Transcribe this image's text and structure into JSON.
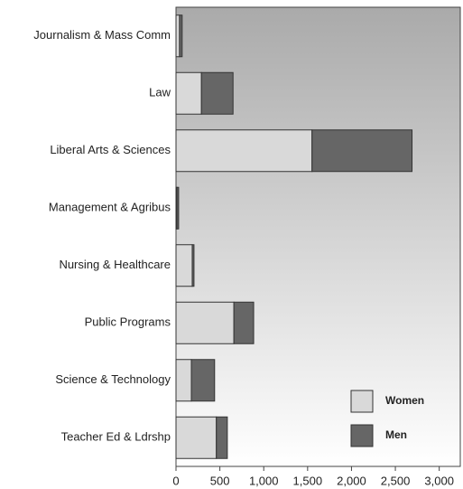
{
  "chart_data": {
    "type": "stacked_bar_horizontal",
    "categories": [
      "Journalism & Mass Comm",
      "Law",
      "Liberal Arts & Sciences",
      "Management & Agribus",
      "Nursing & Healthcare",
      "Public Programs",
      "Science & Technology",
      "Teacher Ed & Ldrshp"
    ],
    "series": [
      {
        "name": "Women",
        "color": "#d9d9d9",
        "values": [
          40,
          290,
          1550,
          10,
          185,
          660,
          175,
          460
        ]
      },
      {
        "name": "Men",
        "color": "#666666",
        "values": [
          30,
          360,
          1140,
          20,
          20,
          225,
          265,
          125
        ]
      }
    ],
    "xlim": [
      0,
      3240
    ],
    "xticks": [
      0,
      500,
      {
        "value": 1000,
        "label": "1,000"
      },
      {
        "value": 1500,
        "label": "1,500"
      },
      {
        "value": 2000,
        "label": "2,000"
      },
      {
        "value": 2500,
        "label": "2,500"
      },
      {
        "value": 3000,
        "label": "3,000"
      }
    ],
    "legend": "bottom-right"
  }
}
